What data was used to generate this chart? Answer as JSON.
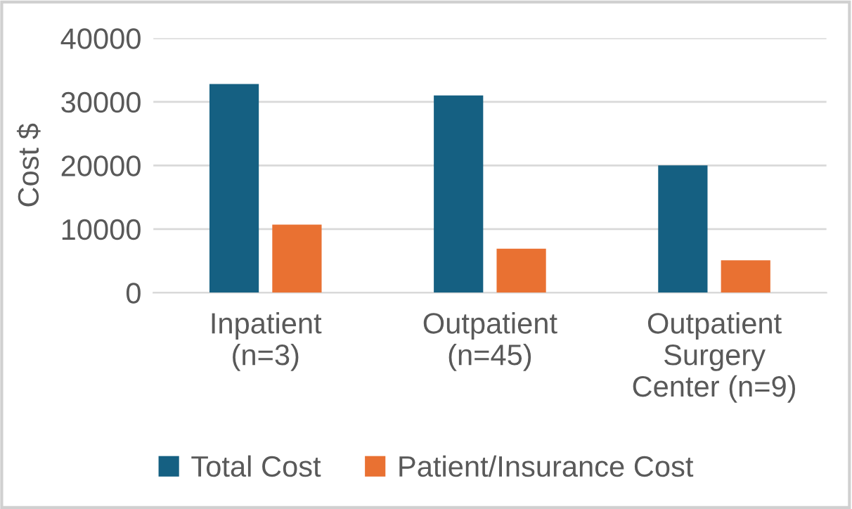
{
  "chart_data": {
    "type": "bar",
    "ylabel": "Cost $",
    "categories": [
      "Inpatient\n(n=3)",
      "Outpatient\n(n=45)",
      "Outpatient\nSurgery\nCenter (n=9)"
    ],
    "series": [
      {
        "name": "Total Cost",
        "color": "#156082",
        "values": [
          32800,
          31000,
          20000
        ]
      },
      {
        "name": "Patient/Insurance Cost",
        "color": "#e97132",
        "values": [
          10700,
          6900,
          5100
        ]
      }
    ],
    "ylim": [
      0,
      40000
    ],
    "yticks": [
      0,
      10000,
      20000,
      30000,
      40000
    ],
    "grid": "y",
    "legend": "bottom"
  }
}
